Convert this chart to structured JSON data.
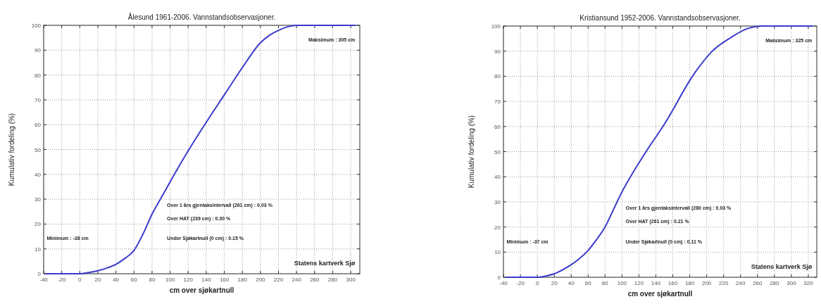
{
  "chart_data": [
    {
      "type": "line",
      "title": "Ålesund 1961-2006. Vannstandsobservasjoner.",
      "xlabel": "cm over sjøkartnull",
      "ylabel": "Kumulativ fordeling (%)",
      "grid": true,
      "xlim": [
        -40,
        310
      ],
      "xticks": [
        -40,
        -20,
        0,
        20,
        40,
        60,
        80,
        100,
        120,
        140,
        160,
        180,
        200,
        220,
        240,
        260,
        280,
        300
      ],
      "ylim": [
        0,
        100
      ],
      "yticks": [
        0,
        10,
        20,
        30,
        40,
        50,
        60,
        70,
        80,
        90,
        100
      ],
      "series": [
        {
          "color": "#3a3acc",
          "x": [
            -38,
            -20,
            0,
            10,
            20,
            30,
            40,
            50,
            60,
            70,
            80,
            90,
            100,
            120,
            140,
            160,
            180,
            200,
            210,
            220,
            230,
            240,
            260,
            280,
            305
          ],
          "values": [
            0,
            0,
            0,
            0.5,
            1.2,
            2.3,
            3.8,
            6.2,
            9.4,
            16,
            24,
            30.5,
            37,
            49.5,
            61,
            72,
            83,
            93,
            96,
            98,
            99.4,
            100,
            100,
            100,
            100
          ]
        }
      ],
      "annotations": [
        "Maksimum : 305 cm",
        "Over 1 års gjentaksintervall (261 cm) : 0.03 %",
        "Over HAT (239 cm) : 0.30 %",
        "Under Sjøkartnull (0 cm) : 0.15 %",
        "Minimum : -38 cm",
        "Statens kartverk Sjø"
      ]
    },
    {
      "type": "line",
      "title": "Kristiansund 1952-2006. Vannstandsobservasjoner.",
      "xlabel": "cm over sjøkartnull",
      "ylabel": "Kumulativ fordeling (%)",
      "grid": true,
      "xlim": [
        -40,
        330
      ],
      "xticks": [
        -40,
        -20,
        0,
        20,
        40,
        60,
        80,
        100,
        120,
        140,
        160,
        180,
        200,
        220,
        240,
        260,
        280,
        300,
        320
      ],
      "ylim": [
        0,
        100
      ],
      "yticks": [
        0,
        10,
        20,
        30,
        40,
        50,
        60,
        70,
        80,
        90,
        100
      ],
      "series": [
        {
          "color": "#3a3acc",
          "x": [
            -37,
            -20,
            0,
            10,
            20,
            30,
            40,
            50,
            60,
            70,
            80,
            90,
            100,
            110,
            128,
            150,
            186,
            206,
            228,
            248,
            265,
            290,
            325
          ],
          "values": [
            0,
            0,
            0,
            0.5,
            1.4,
            3,
            5,
            7.5,
            10.7,
            15,
            20,
            27,
            34,
            40,
            49.8,
            60.9,
            81.4,
            89.8,
            95.3,
            99,
            100,
            100,
            100
          ]
        }
      ],
      "annotations": [
        "Maksimum : 325 cm",
        "Over 1 års gjentaksintervall (280 cm) : 0.03 %",
        "Over HAT (261 cm) : 0.21 %",
        "Under Sjøkartnull (0 cm) : 0.11 %",
        "Minimum : -37 cm",
        "Statens kartverk Sjø"
      ]
    }
  ]
}
